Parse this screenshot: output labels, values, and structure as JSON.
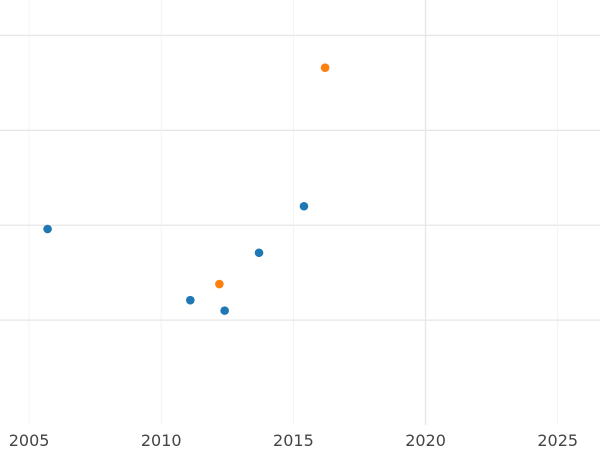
{
  "chart_data": {
    "type": "scatter",
    "title": "",
    "xlabel": "",
    "ylabel": "",
    "xlim": [
      2003.9,
      2026.6
    ],
    "x_ticks": [
      2005,
      2010,
      2015,
      2020,
      2025
    ],
    "x_tick_labels": [
      "2005",
      "2010",
      "2015",
      "2020",
      "2025"
    ],
    "x_minor_ticks": [
      2010,
      2015,
      2025
    ],
    "ylim": [
      0,
      4.5
    ],
    "y_gridlines": [
      1,
      2,
      3,
      4
    ],
    "grid": true,
    "legend": "none",
    "series": [
      {
        "color": "#1f77b4",
        "points": [
          {
            "x": 2005.7,
            "y": 1.96
          },
          {
            "x": 2011.1,
            "y": 1.21
          },
          {
            "x": 2012.4,
            "y": 1.1
          },
          {
            "x": 2013.7,
            "y": 1.71
          },
          {
            "x": 2015.4,
            "y": 2.2
          }
        ]
      },
      {
        "color": "#ff7f0e",
        "points": [
          {
            "x": 2012.2,
            "y": 1.38
          },
          {
            "x": 2016.2,
            "y": 3.66
          }
        ]
      }
    ]
  }
}
